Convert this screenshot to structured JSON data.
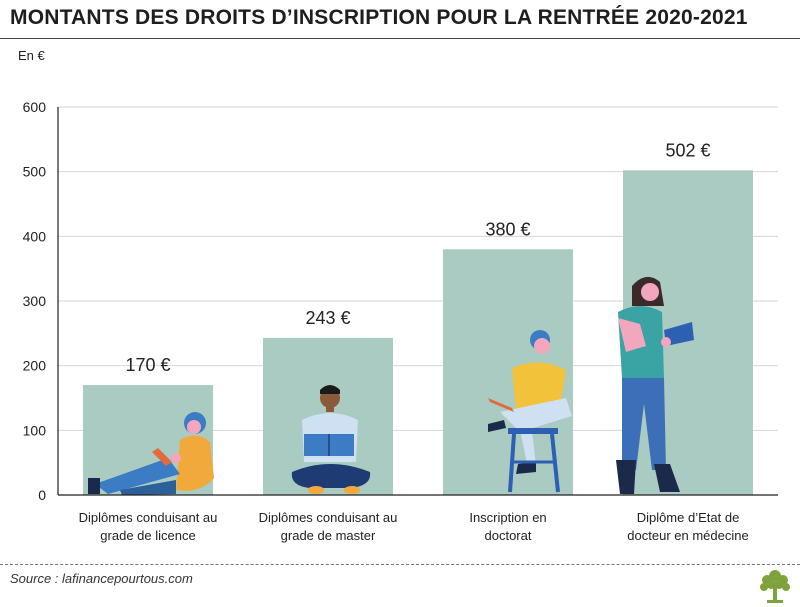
{
  "header": {
    "title": "MONTANTS DES DROITS D’INSCRIPTION POUR LA RENTRÉE 2020-2021",
    "unit": "En €"
  },
  "footer": {
    "source": "Source : lafinancepourtous.com"
  },
  "colors": {
    "bar": "#a9cbc1",
    "axis": "#222222",
    "grid": "#d6d6d6",
    "text": "#222222",
    "logo": "#7ea33c"
  },
  "chart_data": {
    "type": "bar",
    "categories": [
      [
        "Diplômes conduisant au",
        "grade de licence"
      ],
      [
        "Diplômes conduisant au",
        "grade de master"
      ],
      [
        "Inscription en",
        "doctorat"
      ],
      [
        "Diplôme d’Etat de",
        "docteur en médecine"
      ]
    ],
    "values": [
      170,
      243,
      380,
      502
    ],
    "value_labels": [
      "170 €",
      "243 €",
      "380 €",
      "502 €"
    ],
    "yticks": [
      0,
      100,
      200,
      300,
      400,
      500,
      600
    ],
    "ylim": [
      0,
      600
    ],
    "ylabel": "En €",
    "grid": true,
    "legend": "none"
  }
}
